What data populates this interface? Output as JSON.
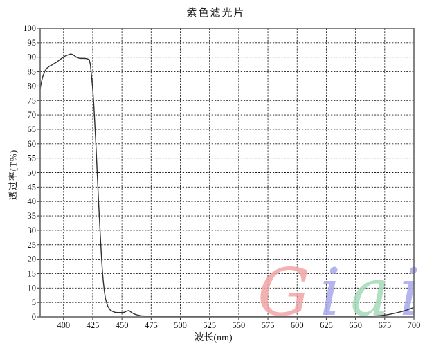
{
  "title": "紫色滤光片",
  "x_axis": {
    "label": "波长(nm)",
    "ticks": [
      400,
      425,
      450,
      475,
      500,
      525,
      550,
      575,
      600,
      625,
      650,
      675,
      700
    ]
  },
  "y_axis": {
    "label": "透过率(T%)",
    "ticks": [
      0,
      5,
      10,
      15,
      20,
      25,
      30,
      35,
      40,
      45,
      50,
      55,
      60,
      65,
      70,
      75,
      80,
      85,
      90,
      95,
      100
    ]
  },
  "watermark": {
    "text": "Giai",
    "letters": [
      {
        "char": "G",
        "color": "#f2a4a4"
      },
      {
        "char": "i",
        "color": "#a7a7ec"
      },
      {
        "char": "a",
        "color": "#a3dab8"
      },
      {
        "char": "i",
        "color": "#a7a7ec"
      }
    ]
  },
  "colors": {
    "curve": "#2f2f2f",
    "grid": "#1c1c1c",
    "border": "#6e6e6e",
    "tick": "#333333"
  },
  "chart_data": {
    "type": "line",
    "title": "紫色滤光片",
    "xlabel": "波长(nm)",
    "ylabel": "透过率(T%)",
    "xlim": [
      380,
      700
    ],
    "ylim": [
      0,
      100
    ],
    "x_tick_step": 25,
    "y_tick_step": 5,
    "grid": "dotted",
    "legend": "none",
    "series": [
      {
        "name": "透过率",
        "x": [
          380,
          381,
          382,
          384,
          386,
          388,
          390,
          392,
          394,
          396,
          398,
          400,
          402,
          404,
          406,
          408,
          410,
          412,
          414,
          416,
          418,
          420,
          422,
          423,
          424,
          425,
          426,
          427,
          428,
          429,
          430,
          431,
          432,
          433,
          434,
          435,
          436,
          437,
          438,
          440,
          442,
          444,
          446,
          448,
          450,
          452,
          454,
          456,
          458,
          460,
          462,
          464,
          466,
          468,
          470,
          475,
          480,
          490,
          500,
          520,
          540,
          560,
          580,
          600,
          620,
          640,
          655,
          665,
          672,
          678,
          684,
          690,
          694,
          698,
          700
        ],
        "y": [
          79,
          81.2,
          83,
          85.2,
          86.3,
          86.9,
          87.3,
          87.8,
          88.3,
          88.9,
          89.5,
          90.1,
          90.5,
          90.8,
          91.1,
          90.9,
          90.3,
          89.8,
          89.6,
          89.6,
          89.6,
          89.5,
          89.2,
          87.5,
          83.5,
          79,
          73,
          65.5,
          57.5,
          48.5,
          40,
          32,
          24.5,
          17.5,
          12.5,
          8.8,
          6.2,
          4.8,
          3.6,
          2.4,
          1.9,
          1.6,
          1.5,
          1.5,
          1.5,
          1.6,
          2.0,
          2.2,
          1.6,
          1.1,
          0.8,
          0.6,
          0.4,
          0.35,
          0.3,
          0.2,
          0.15,
          0.1,
          0.1,
          0.1,
          0.1,
          0.1,
          0.1,
          0.1,
          0.1,
          0.15,
          0.2,
          0.3,
          0.5,
          0.8,
          1.3,
          1.9,
          2.4,
          3.0,
          3.3
        ]
      }
    ]
  }
}
